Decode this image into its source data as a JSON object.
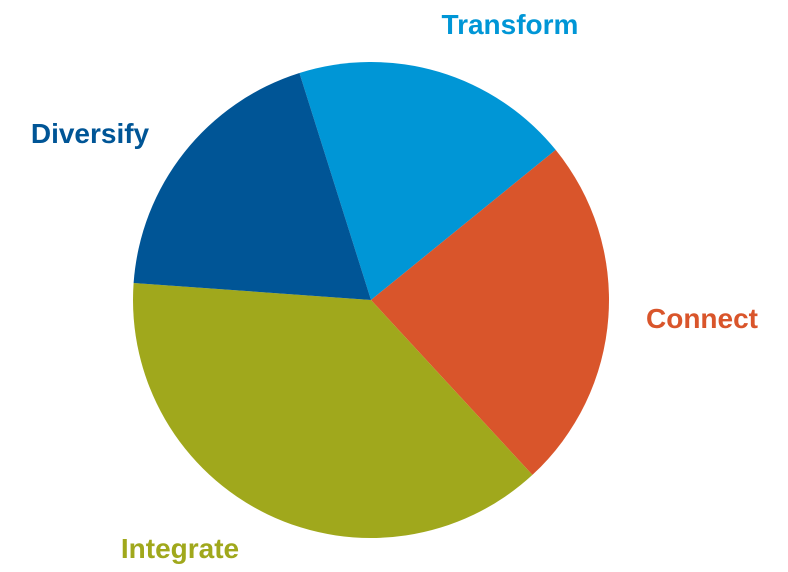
{
  "chart_data": {
    "type": "pie",
    "categories": [
      "Transform",
      "Connect",
      "Integrate",
      "Diversify"
    ],
    "values": [
      19,
      24,
      38,
      19
    ],
    "colors": [
      "#0096d6",
      "#d9552b",
      "#a0a81c",
      "#005596"
    ]
  }
}
